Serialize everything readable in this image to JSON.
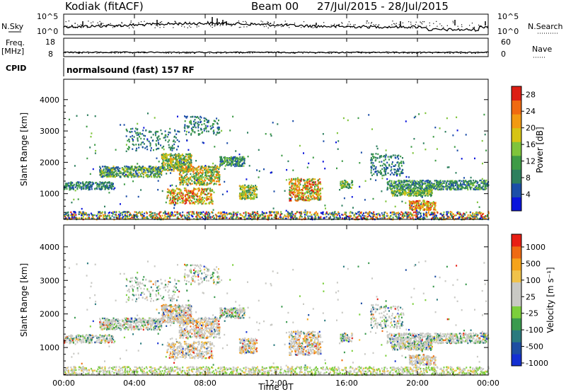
{
  "header": {
    "station": "Kodiak (fitACF)",
    "beam": "Beam 00",
    "dates": "27/Jul/2015 - 28/Jul/2015"
  },
  "strip1": {
    "left_label_1": "N.Sky",
    "right_label": "N.Search",
    "left_ticks": [
      "10^5",
      "10^0"
    ],
    "right_ticks": [
      "10^5",
      "10^0"
    ]
  },
  "strip2": {
    "left_label_1": "Freq.",
    "left_label_2": "[MHz]",
    "right_label": "Nave",
    "left_ticks": [
      "18",
      "8"
    ],
    "right_ticks": [
      "60",
      "0"
    ]
  },
  "cpid": {
    "label": "CPID",
    "text": "normalsound (fast) 157 RF"
  },
  "colors": {
    "power": [
      "#0a14dc",
      "#1c4ea8",
      "#2e7f5e",
      "#3e9b46",
      "#7fc43b",
      "#d6c414",
      "#f29a12",
      "#f06a10",
      "#dc1e14"
    ],
    "velocity": [
      "#e81e14",
      "#ef6a12",
      "#f5a31a",
      "#f0c24a",
      "#c9c9c4",
      "#c9c9c4",
      "#7ccf3c",
      "#3a9a4e",
      "#2a7a7e",
      "#1e4ea2",
      "#1430d2"
    ]
  },
  "chart_data": [
    {
      "type": "heatmap",
      "name": "power",
      "ylabel": "Slant Range [km]",
      "yticks": [
        "1000",
        "2000",
        "3000",
        "4000"
      ],
      "ylim": [
        180,
        4650
      ],
      "colorbar_label": "Power [dB]",
      "colorbar_ticks": [
        "4",
        "8",
        "12",
        "16",
        "20",
        "24",
        "28"
      ],
      "crange": [
        0,
        30
      ]
    },
    {
      "type": "heatmap",
      "name": "velocity",
      "ylabel": "Slant Range [km]",
      "yticks": [
        "1000",
        "2000",
        "3000",
        "4000"
      ],
      "ylim": [
        180,
        4650
      ],
      "colorbar_label": "Velocity [m s⁻¹]",
      "colorbar_ticks": [
        "1000",
        "500",
        "100",
        "25",
        "-25",
        "-100",
        "-500",
        "-1000"
      ],
      "xlabel": "Time UT",
      "xticks": [
        "00:00",
        "04:00",
        "08:00",
        "12:00",
        "16:00",
        "20:00",
        "00:00"
      ],
      "xlim": [
        "00:00",
        "24:00"
      ]
    }
  ]
}
